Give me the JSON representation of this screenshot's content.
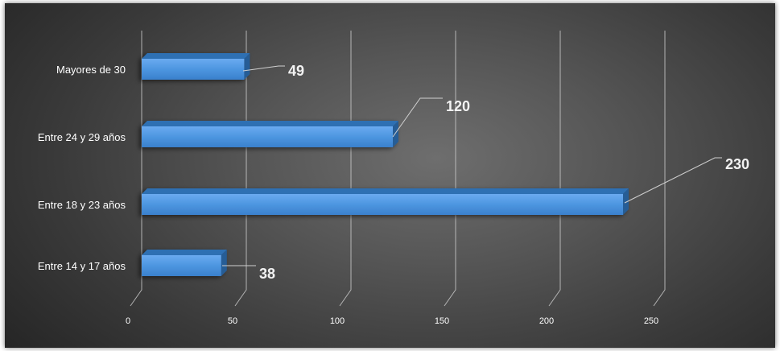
{
  "chart_data": {
    "type": "bar",
    "orientation": "horizontal",
    "style": "3d",
    "categories": [
      "Mayores de 30",
      "Entre 24 y 29 años",
      "Entre 18 y 23 años",
      "Entre 14 y 17 años"
    ],
    "values": [
      49,
      120,
      230,
      38
    ],
    "data_labels": [
      "49",
      "120",
      "230",
      "38"
    ],
    "x_ticks": [
      "0",
      "50",
      "100",
      "150",
      "200",
      "250"
    ],
    "xlim": [
      0,
      250
    ],
    "grid": true,
    "legend": "none",
    "title": "",
    "xlabel": "",
    "ylabel": "",
    "colors": {
      "bar_front": "#4d96e0",
      "bar_top": "#2f6fb3",
      "bar_side": "#275d96",
      "grid": "#c8c8c8",
      "text": "#ffffff",
      "data_label": "#f2f2f2"
    }
  }
}
